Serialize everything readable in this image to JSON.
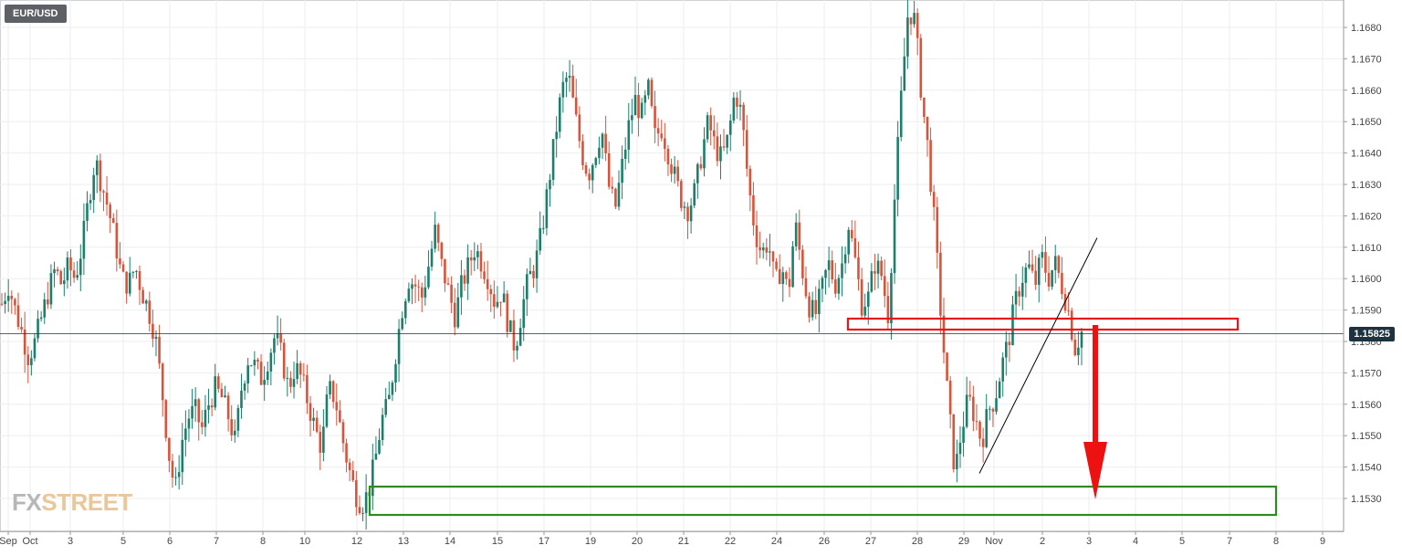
{
  "symbol": "EUR/USD",
  "current_price_label": "1.15825",
  "logo": {
    "part1": "FX",
    "part2": "STREET"
  },
  "colors": {
    "up": "#1b7f6c",
    "down": "#d9533a",
    "grid": "#eceef0",
    "price_line": "#1e3340",
    "resistance_box": "#e8161b",
    "support_box": "#2e8b1f",
    "arrow": "#ee1111",
    "trendline": "#000000"
  },
  "chart_data": {
    "type": "candlestick",
    "ylim": [
      1.152,
      1.169
    ],
    "y_ticks": [
      "1.1530",
      "1.1540",
      "1.1550",
      "1.1560",
      "1.1570",
      "1.1580",
      "1.1590",
      "1.1600",
      "1.1610",
      "1.1620",
      "1.1630",
      "1.1640",
      "1.1650",
      "1.1660",
      "1.1670",
      "1.1680"
    ],
    "x_ticks": [
      "Sep",
      "Oct",
      "3",
      "5",
      "6",
      "7",
      "8",
      "10",
      "12",
      "13",
      "14",
      "15",
      "17",
      "19",
      "20",
      "21",
      "22",
      "24",
      "26",
      "27",
      "28",
      "29",
      "Nov",
      "2",
      "3",
      "4",
      "5",
      "7",
      "8",
      "9"
    ],
    "current_price": 1.15825,
    "path": [
      1.1592,
      1.1598,
      1.159,
      1.1583,
      1.1575,
      1.158,
      1.1588,
      1.1596,
      1.1603,
      1.1598,
      1.1604,
      1.16,
      1.161,
      1.1625,
      1.1638,
      1.163,
      1.1622,
      1.1612,
      1.16,
      1.1598,
      1.1604,
      1.1596,
      1.159,
      1.1582,
      1.1565,
      1.1545,
      1.1532,
      1.1548,
      1.1556,
      1.1558,
      1.1552,
      1.156,
      1.1565,
      1.1562,
      1.1556,
      1.1548,
      1.1566,
      1.1575,
      1.1572,
      1.1568,
      1.1575,
      1.1582,
      1.1575,
      1.1565,
      1.1572,
      1.1568,
      1.156,
      1.1552,
      1.1546,
      1.1565,
      1.1562,
      1.155,
      1.154,
      1.1532,
      1.1528,
      1.1532,
      1.1542,
      1.1555,
      1.156,
      1.1575,
      1.159,
      1.16,
      1.1598,
      1.1594,
      1.1604,
      1.1615,
      1.1604,
      1.1596,
      1.1588,
      1.1598,
      1.1604,
      1.161,
      1.1605,
      1.16,
      1.1592,
      1.1596,
      1.1585,
      1.1578,
      1.159,
      1.16,
      1.1604,
      1.1615,
      1.163,
      1.1645,
      1.166,
      1.1665,
      1.1652,
      1.164,
      1.1633,
      1.164,
      1.1648,
      1.163,
      1.1622,
      1.1635,
      1.1648,
      1.1657,
      1.1652,
      1.166,
      1.1645,
      1.1648,
      1.164,
      1.1632,
      1.1625,
      1.1622,
      1.1628,
      1.164,
      1.165,
      1.1642,
      1.1638,
      1.1645,
      1.166,
      1.1652,
      1.163,
      1.1615,
      1.1608,
      1.1612,
      1.1598,
      1.1604,
      1.1595,
      1.1618,
      1.1604,
      1.1592,
      1.1588,
      1.1596,
      1.1605,
      1.1598,
      1.1604,
      1.1618,
      1.1606,
      1.1592,
      1.1594,
      1.1605,
      1.1601,
      1.1588,
      1.1628,
      1.166,
      1.1686,
      1.1682,
      1.1658,
      1.164,
      1.1615,
      1.1585,
      1.156,
      1.1538,
      1.1552,
      1.1562,
      1.1556,
      1.1548,
      1.1558,
      1.1562,
      1.1572,
      1.158,
      1.1592,
      1.16,
      1.1604,
      1.1598,
      1.1607,
      1.16,
      1.1605,
      1.1598,
      1.159,
      1.1578,
      1.1583
    ],
    "annotations": [
      {
        "type": "rect",
        "label": "resistance",
        "x_from": "26",
        "x_to": "3",
        "y_from": 1.1586,
        "y_to": 1.1588
      },
      {
        "type": "rect",
        "label": "support",
        "x_from": "12",
        "x_to": "8",
        "y_from": 1.1525,
        "y_to": 1.1534
      },
      {
        "type": "trendline",
        "from": [
          "29",
          1.1538
        ],
        "to": [
          "3",
          1.1613
        ]
      },
      {
        "type": "arrow",
        "direction": "down",
        "from": 1.1586,
        "to": 1.153
      }
    ]
  }
}
